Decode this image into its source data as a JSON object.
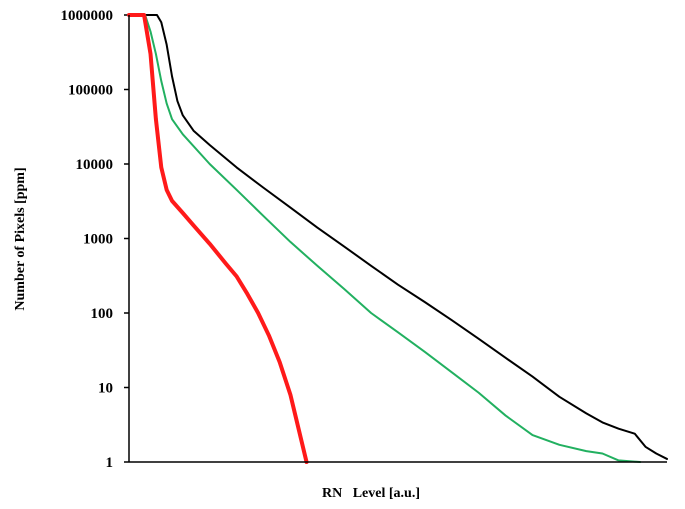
{
  "chart_data": {
    "type": "line",
    "title": "",
    "xlabel": "RN   Level [a.u.]",
    "ylabel": "Number of Pixels  [ppm]",
    "yscale": "log",
    "ylim": [
      1,
      1000000
    ],
    "xlim": [
      0,
      100
    ],
    "xticks_shown": false,
    "grid": false,
    "legend": "none",
    "yticks": [
      1,
      10,
      100,
      1000,
      10000,
      100000,
      1000000
    ],
    "ytick_labels": [
      "1",
      "10",
      "100",
      "1000",
      "10000",
      "100000",
      "1000000"
    ],
    "series": [
      {
        "color": "#000000",
        "stroke_width": 2,
        "points": [
          [
            0,
            1000000
          ],
          [
            5.2,
            1000000
          ],
          [
            6,
            800000
          ],
          [
            7,
            400000
          ],
          [
            8,
            150000
          ],
          [
            9,
            70000
          ],
          [
            10,
            45000
          ],
          [
            12,
            28000
          ],
          [
            15,
            18000
          ],
          [
            20,
            9000
          ],
          [
            25,
            4800
          ],
          [
            30,
            2600
          ],
          [
            35,
            1400
          ],
          [
            40,
            780
          ],
          [
            45,
            430
          ],
          [
            50,
            240
          ],
          [
            55,
            140
          ],
          [
            60,
            80
          ],
          [
            65,
            45
          ],
          [
            70,
            25
          ],
          [
            75,
            14
          ],
          [
            80,
            7.5
          ],
          [
            85,
            4.5
          ],
          [
            88,
            3.4
          ],
          [
            91,
            2.8
          ],
          [
            94,
            2.4
          ],
          [
            96,
            1.6
          ],
          [
            98,
            1.3
          ],
          [
            100,
            1.1
          ]
        ]
      },
      {
        "color": "#22b060",
        "stroke_width": 2,
        "points": [
          [
            0,
            1000000
          ],
          [
            3,
            1000000
          ],
          [
            4,
            600000
          ],
          [
            5,
            300000
          ],
          [
            6,
            130000
          ],
          [
            7,
            65000
          ],
          [
            8,
            40000
          ],
          [
            10,
            25000
          ],
          [
            15,
            10000
          ],
          [
            20,
            4500
          ],
          [
            25,
            2000
          ],
          [
            30,
            900
          ],
          [
            35,
            430
          ],
          [
            40,
            210
          ],
          [
            45,
            100
          ],
          [
            50,
            55
          ],
          [
            55,
            30
          ],
          [
            60,
            16
          ],
          [
            65,
            8.5
          ],
          [
            70,
            4.2
          ],
          [
            75,
            2.3
          ],
          [
            80,
            1.7
          ],
          [
            85,
            1.4
          ],
          [
            88,
            1.3
          ],
          [
            91,
            1.05
          ],
          [
            95,
            1
          ]
        ]
      },
      {
        "color": "#ff1a1a",
        "stroke_width": 4,
        "points": [
          [
            0,
            1000000
          ],
          [
            2.8,
            1000000
          ],
          [
            4,
            300000
          ],
          [
            5,
            40000
          ],
          [
            6,
            9000
          ],
          [
            7,
            4500
          ],
          [
            8,
            3200
          ],
          [
            10,
            2200
          ],
          [
            12,
            1500
          ],
          [
            15,
            850
          ],
          [
            18,
            460
          ],
          [
            20,
            310
          ],
          [
            22,
            180
          ],
          [
            24,
            100
          ],
          [
            26,
            50
          ],
          [
            28,
            22
          ],
          [
            30,
            8
          ],
          [
            31,
            4
          ],
          [
            32,
            2
          ],
          [
            33,
            1
          ]
        ]
      }
    ]
  }
}
